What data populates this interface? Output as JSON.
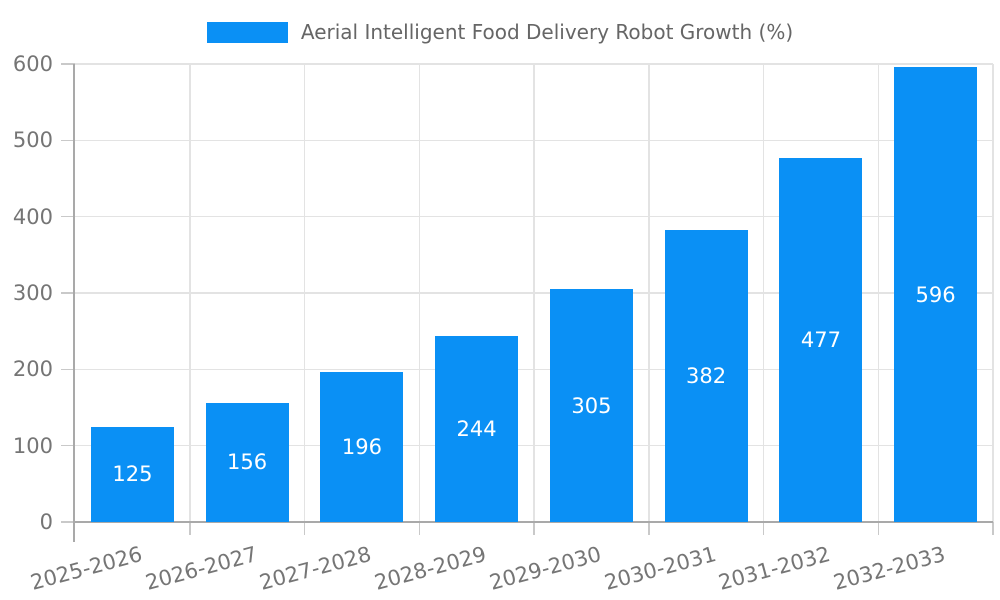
{
  "chart_data": {
    "type": "bar",
    "title": "Aerial Intelligent Food Delivery Robot Growth (%)",
    "categories": [
      "2025-2026",
      "2026-2027",
      "2027-2028",
      "2028-2029",
      "2029-2030",
      "2030-2031",
      "2031-2032",
      "2032-2033"
    ],
    "values": [
      125,
      156,
      196,
      244,
      305,
      382,
      477,
      596
    ],
    "bar_labels": [
      "125",
      "156",
      "196",
      "244",
      "305",
      "382",
      "477",
      "596"
    ],
    "xlabel": "",
    "ylabel": "",
    "ylim": [
      0,
      600
    ],
    "yticks": [
      0,
      100,
      200,
      300,
      400,
      500,
      600
    ],
    "grid": true,
    "legend_position": "top-center",
    "colors": {
      "bar": "#0A90F5",
      "grid": "#e3e3e3",
      "axis": "#a9a9a9",
      "tick": "#c9c9c9",
      "tick_label": "#757575",
      "title": "#666666",
      "bar_label": "#ffffff",
      "background": "#ffffff"
    }
  }
}
